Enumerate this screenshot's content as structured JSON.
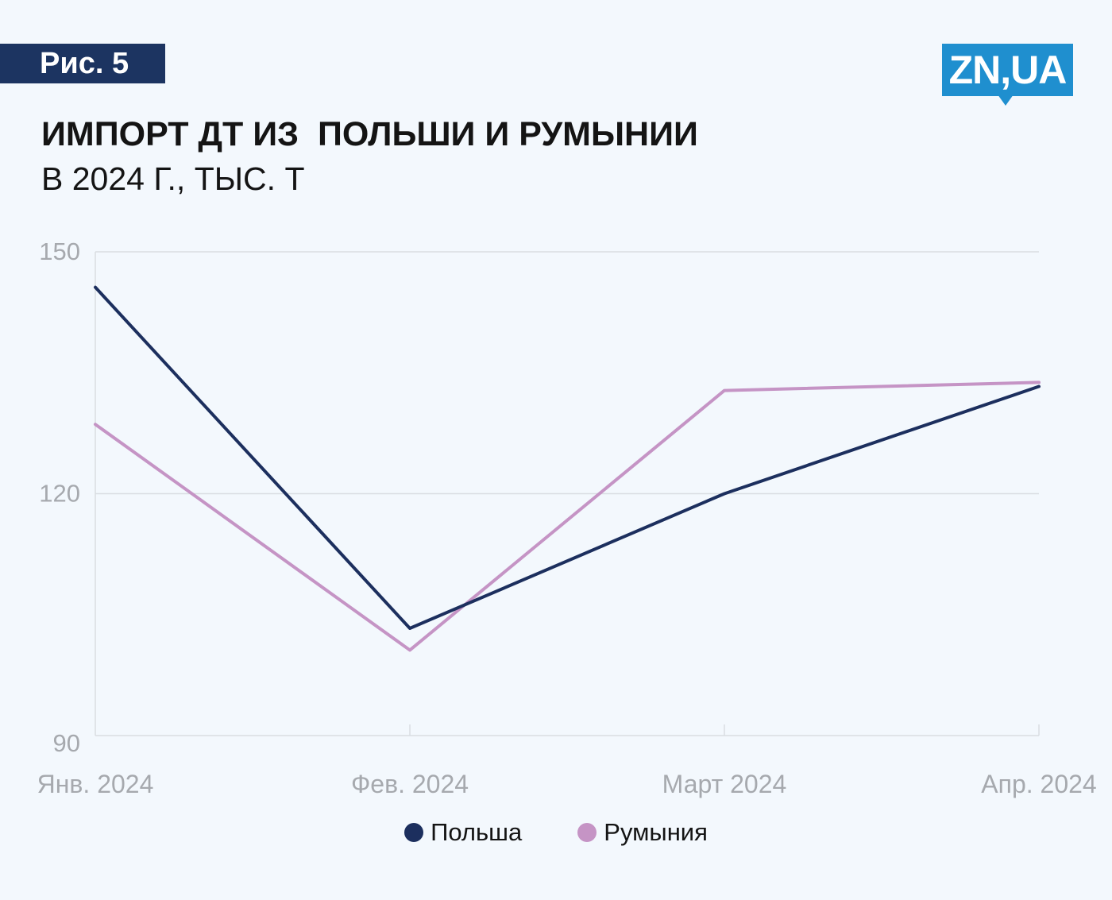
{
  "header": {
    "figure_label": "Рис. 5",
    "title": "ИМПОРТ ДТ ИЗ  ПОЛЬШИ И РУМЫНИИ",
    "subtitle": "В 2024 Г., ТЫС. Т",
    "logo_text": "ZN,UA"
  },
  "colors": {
    "poland": "#1c2f5e",
    "romania": "#c594c5",
    "badge": "#1c3461",
    "logo": "#1f8fcf"
  },
  "chart_data": {
    "type": "line",
    "title": "ИМПОРТ ДТ ИЗ  ПОЛЬШИ И РУМЫНИИ",
    "subtitle": "В 2024 Г., ТЫС. Т",
    "categories": [
      "Янв. 2024",
      "Фев. 2024",
      "Март 2024",
      "Апр. 2024"
    ],
    "series": [
      {
        "name": "Польша",
        "values": [
          145.6,
          103.3,
          120.0,
          133.3
        ]
      },
      {
        "name": "Румыния",
        "values": [
          128.6,
          100.6,
          132.8,
          133.8
        ]
      }
    ],
    "yticks": [
      90,
      120,
      150
    ],
    "ylim": [
      90,
      150
    ],
    "grid": "horizontal",
    "legend_position": "bottom-center"
  }
}
